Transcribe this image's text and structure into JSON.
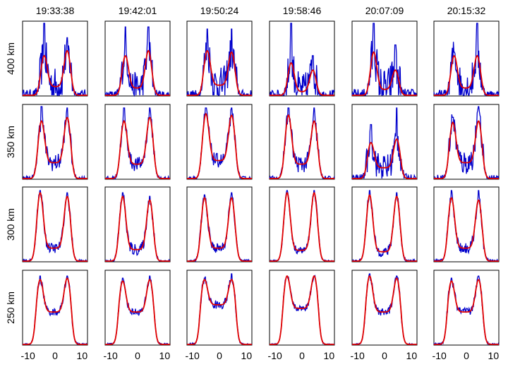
{
  "chart_data": {
    "type": "line",
    "layout": "small-multiples grid, 4 rows x 6 columns",
    "column_titles": [
      "19:33:38",
      "19:42:01",
      "19:50:24",
      "19:58:46",
      "20:07:09",
      "20:15:32"
    ],
    "row_labels": [
      "400 km",
      "350 km",
      "300 km",
      "250 km"
    ],
    "xlim": [
      -12,
      12
    ],
    "xticks": [
      -10,
      0,
      10
    ],
    "ylim": [
      0,
      1
    ],
    "grid": false,
    "legend": "none",
    "series": [
      {
        "color": "#0000cc",
        "style": "noisy measured profile"
      },
      {
        "color": "#e00000",
        "style": "smooth double-peak fit"
      }
    ],
    "panels": [
      [
        {
          "peakL": 0.55,
          "peakR": 0.62,
          "valley": 0.12,
          "noise": 0.28,
          "left": -4,
          "right": 4.5,
          "spikeL": 1.0,
          "spikeR": 0.8
        },
        {
          "peakL": 0.55,
          "peakR": 0.62,
          "valley": 0.1,
          "noise": 0.22,
          "left": -4.5,
          "right": 4,
          "spikeL": 0.95,
          "spikeR": 0.95
        },
        {
          "peakL": 0.62,
          "peakR": 0.6,
          "valley": 0.14,
          "noise": 0.25,
          "left": -4.5,
          "right": 4.5,
          "spikeL": 0.92,
          "spikeR": 0.92
        },
        {
          "peakL": 0.45,
          "peakR": 0.35,
          "valley": 0.05,
          "noise": 0.26,
          "left": -4,
          "right": 4,
          "spikeL": 1.0,
          "spikeR": 0.55
        },
        {
          "peakL": 0.6,
          "peakR": 0.35,
          "valley": 0.08,
          "noise": 0.3,
          "left": -4,
          "right": 4,
          "spikeL": 1.0,
          "spikeR": 0.7
        },
        {
          "peakL": 0.55,
          "peakR": 0.55,
          "valley": 0.1,
          "noise": 0.25,
          "left": -4.5,
          "right": 4,
          "spikeL": 0.6,
          "spikeR": 1.0
        }
      ],
      [
        {
          "peakL": 0.8,
          "peakR": 0.85,
          "valley": 0.22,
          "noise": 0.12,
          "left": -5,
          "right": 4.5,
          "spikeL": 1.0,
          "spikeR": 0.98
        },
        {
          "peakL": 0.8,
          "peakR": 0.85,
          "valley": 0.2,
          "noise": 0.1,
          "left": -5,
          "right": 4.5,
          "spikeL": 0.98,
          "spikeR": 0.98
        },
        {
          "peakL": 0.9,
          "peakR": 0.88,
          "valley": 0.25,
          "noise": 0.1,
          "left": -5,
          "right": 4.5,
          "spikeL": 0.98,
          "spikeR": 0.98
        },
        {
          "peakL": 0.88,
          "peakR": 0.8,
          "valley": 0.2,
          "noise": 0.12,
          "left": -5,
          "right": 4.5,
          "spikeL": 0.98,
          "spikeR": 0.98
        },
        {
          "peakL": 0.5,
          "peakR": 0.55,
          "valley": 0.15,
          "noise": 0.2,
          "left": -5,
          "right": 4.5,
          "spikeL": 0.75,
          "spikeR": 0.98
        },
        {
          "peakL": 0.78,
          "peakR": 0.8,
          "valley": 0.22,
          "noise": 0.18,
          "left": -5,
          "right": 4.5,
          "spikeL": 0.85,
          "spikeR": 1.0
        }
      ],
      [
        {
          "peakL": 0.95,
          "peakR": 0.9,
          "valley": 0.18,
          "noise": 0.07,
          "left": -5.5,
          "right": 4.5,
          "spikeL": 0.98,
          "spikeR": 0.95
        },
        {
          "peakL": 0.9,
          "peakR": 0.85,
          "valley": 0.16,
          "noise": 0.08,
          "left": -5.5,
          "right": 4.5,
          "spikeL": 0.95,
          "spikeR": 0.9
        },
        {
          "peakL": 0.88,
          "peakR": 0.88,
          "valley": 0.18,
          "noise": 0.07,
          "left": -5.5,
          "right": 4.5,
          "spikeL": 0.92,
          "spikeR": 0.95
        },
        {
          "peakL": 0.95,
          "peakR": 0.95,
          "valley": 0.15,
          "noise": 0.05,
          "left": -5.5,
          "right": 4.5,
          "spikeL": 0.98,
          "spikeR": 0.98
        },
        {
          "peakL": 0.92,
          "peakR": 0.9,
          "valley": 0.13,
          "noise": 0.07,
          "left": -5.5,
          "right": 4.5,
          "spikeL": 0.98,
          "spikeR": 0.95
        },
        {
          "peakL": 0.88,
          "peakR": 0.85,
          "valley": 0.18,
          "noise": 0.08,
          "left": -5.5,
          "right": 4.5,
          "spikeL": 0.98,
          "spikeR": 0.98
        }
      ],
      [
        {
          "peakL": 0.9,
          "peakR": 0.92,
          "valley": 0.45,
          "noise": 0.05,
          "left": -5.5,
          "right": 4.5,
          "spikeL": 0.95,
          "spikeR": 0.95
        },
        {
          "peakL": 0.88,
          "peakR": 0.9,
          "valley": 0.45,
          "noise": 0.05,
          "left": -5.5,
          "right": 4.5,
          "spikeL": 0.92,
          "spikeR": 0.95
        },
        {
          "peakL": 0.9,
          "peakR": 0.9,
          "valley": 0.55,
          "noise": 0.06,
          "left": -5.5,
          "right": 4.5,
          "spikeL": 0.92,
          "spikeR": 0.98
        },
        {
          "peakL": 0.95,
          "peakR": 0.95,
          "valley": 0.5,
          "noise": 0.04,
          "left": -5.5,
          "right": 4.5,
          "spikeL": 0.95,
          "spikeR": 0.95
        },
        {
          "peakL": 0.95,
          "peakR": 0.92,
          "valley": 0.45,
          "noise": 0.05,
          "left": -5.5,
          "right": 4.5,
          "spikeL": 0.98,
          "spikeR": 0.95
        },
        {
          "peakL": 0.88,
          "peakR": 0.9,
          "valley": 0.45,
          "noise": 0.06,
          "left": -5.5,
          "right": 4.5,
          "spikeL": 0.92,
          "spikeR": 0.95
        }
      ]
    ]
  }
}
